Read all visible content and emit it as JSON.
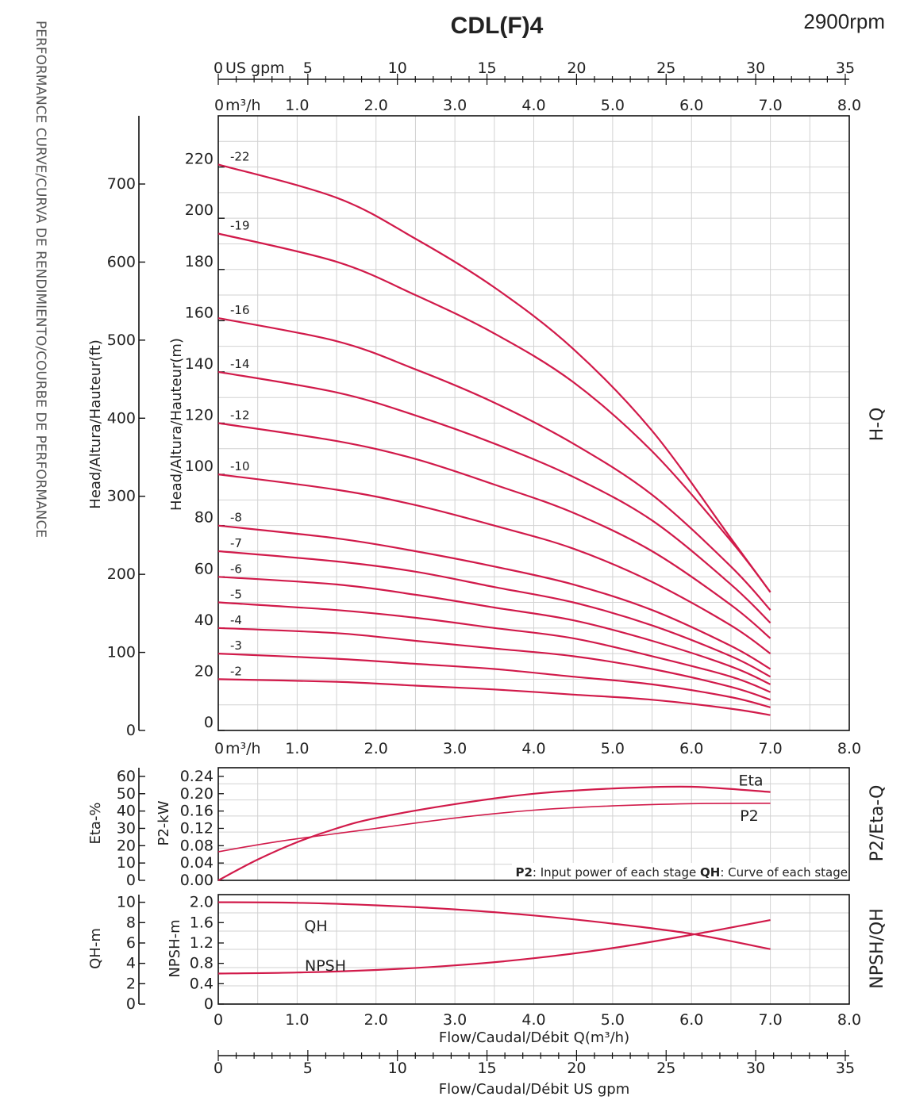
{
  "header": {
    "title": "CDL(F)4",
    "speed": "2900rpm",
    "side_title": "PERFORMANCE CURVE/CURVA DE RENDIMIENTO/COURBE DE PERFORMANCE"
  },
  "chart_data": [
    {
      "id": "hq",
      "type": "line",
      "panel_label": "H-Q",
      "xlabel_top_gpm": "US gpm",
      "xlabel_top_m3h": "m³/h",
      "ylabel_m": "Head/Altura/Hauteur(m)",
      "ylabel_ft": "Head/Altura/Hauteur(ft)",
      "xlim": [
        0,
        8
      ],
      "ylim": [
        0,
        240
      ],
      "x_ticks": [
        "0",
        "1.0",
        "2.0",
        "3.0",
        "4.0",
        "5.0",
        "6.0",
        "7.0",
        "8.0"
      ],
      "y_ticks_m": [
        0,
        20,
        40,
        60,
        80,
        100,
        120,
        140,
        160,
        180,
        200,
        220
      ],
      "y_ticks_ft": [
        0,
        100,
        200,
        300,
        400,
        500,
        600,
        700
      ],
      "gpm_ticks": [
        0,
        5,
        10,
        15,
        20,
        25,
        30,
        35
      ],
      "x": [
        0,
        1.5,
        2.5,
        3.5,
        4.5,
        5.5,
        6.5,
        7.0
      ],
      "series": [
        {
          "name": "-22",
          "values": [
            221,
            208,
            192,
            173,
            149,
            117,
            75,
            54
          ]
        },
        {
          "name": "-19",
          "values": [
            194,
            183,
            170,
            155,
            136,
            109,
            74,
            54
          ]
        },
        {
          "name": "-16",
          "values": [
            161,
            152,
            141,
            128,
            112,
            92,
            64,
            47
          ]
        },
        {
          "name": "-14",
          "values": [
            140,
            132,
            123,
            112,
            99,
            82,
            57,
            42
          ]
        },
        {
          "name": "-12",
          "values": [
            120,
            113,
            106,
            96,
            85,
            70,
            49,
            36
          ]
        },
        {
          "name": "-10",
          "values": [
            100,
            94,
            88,
            80,
            71,
            58,
            41,
            30
          ]
        },
        {
          "name": "-8",
          "values": [
            80,
            75,
            70,
            64,
            57,
            47,
            33,
            24
          ]
        },
        {
          "name": "-7",
          "values": [
            70,
            66,
            62,
            56,
            50,
            41,
            29,
            21
          ]
        },
        {
          "name": "-6",
          "values": [
            60,
            57,
            53,
            48,
            43,
            35,
            25,
            18
          ]
        },
        {
          "name": "-5",
          "values": [
            50,
            47,
            44,
            40,
            36,
            29,
            21,
            15
          ]
        },
        {
          "name": "-4",
          "values": [
            40,
            38,
            35,
            32,
            29,
            24,
            17,
            12
          ]
        },
        {
          "name": "-3",
          "values": [
            30,
            28,
            26,
            24,
            21,
            18,
            13,
            9
          ]
        },
        {
          "name": "-2",
          "values": [
            20,
            19,
            17.5,
            16,
            14,
            12,
            8.5,
            6
          ]
        }
      ]
    },
    {
      "id": "p2eta",
      "type": "line",
      "panel_label": "P2/Eta-Q",
      "ylabel_eta": "Eta-%",
      "ylabel_p2": "P2-kW",
      "xlim": [
        0,
        8
      ],
      "p2_ylim": [
        0,
        0.26
      ],
      "eta_ylim": [
        0,
        65
      ],
      "y_ticks_p2": [
        "0.00",
        "0.04",
        "0.08",
        "0.12",
        "0.16",
        "0.20",
        "0.24"
      ],
      "y_ticks_eta": [
        0,
        10,
        20,
        30,
        40,
        50,
        60
      ],
      "x": [
        0,
        0.5,
        1.0,
        1.5,
        2.0,
        3.0,
        4.0,
        5.0,
        6.0,
        7.0
      ],
      "series": [
        {
          "name": "Eta",
          "values": [
            0,
            12,
            22,
            30,
            36,
            44,
            50,
            53,
            54,
            51
          ]
        },
        {
          "name": "P2",
          "values": [
            0.066,
            0.082,
            0.096,
            0.108,
            0.12,
            0.144,
            0.162,
            0.172,
            0.177,
            0.178
          ]
        }
      ],
      "note": {
        "p2_key": "P2",
        "p2_text": ": Input power of each stage ",
        "qh_key": "QH",
        "qh_text": ": Curve of each stage"
      }
    },
    {
      "id": "npshqh",
      "type": "line",
      "panel_label": "NPSH/QH",
      "ylabel_qh": "QH-m",
      "ylabel_npsh": "NPSH-m",
      "xlabel": "Flow/Caudal/Débit Q(m³/h)",
      "xlabel_gpm": "Flow/Caudal/Débit  US gpm",
      "xlim": [
        0,
        8
      ],
      "npsh_ylim": [
        0,
        2.15
      ],
      "qh_ylim": [
        0,
        10.75
      ],
      "y_ticks_npsh": [
        "0",
        "0.4",
        "0.8",
        "1.2",
        "1.6",
        "2.0"
      ],
      "y_ticks_qh": [
        0,
        2,
        4,
        6,
        8,
        10
      ],
      "x_ticks": [
        "0",
        "1.0",
        "2.0",
        "3.0",
        "4.0",
        "5.0",
        "6.0",
        "7.0",
        "8.0"
      ],
      "gpm_ticks": [
        0,
        5,
        10,
        15,
        20,
        25,
        30,
        35
      ],
      "x": [
        0,
        1.0,
        2.0,
        3.0,
        4.0,
        5.0,
        6.0,
        7.0
      ],
      "series": [
        {
          "name": "QH",
          "values": [
            10.0,
            9.95,
            9.7,
            9.3,
            8.7,
            7.9,
            6.9,
            5.4
          ]
        },
        {
          "name": "NPSH",
          "values": [
            0.6,
            0.62,
            0.67,
            0.76,
            0.9,
            1.1,
            1.36,
            1.65
          ]
        }
      ]
    }
  ]
}
